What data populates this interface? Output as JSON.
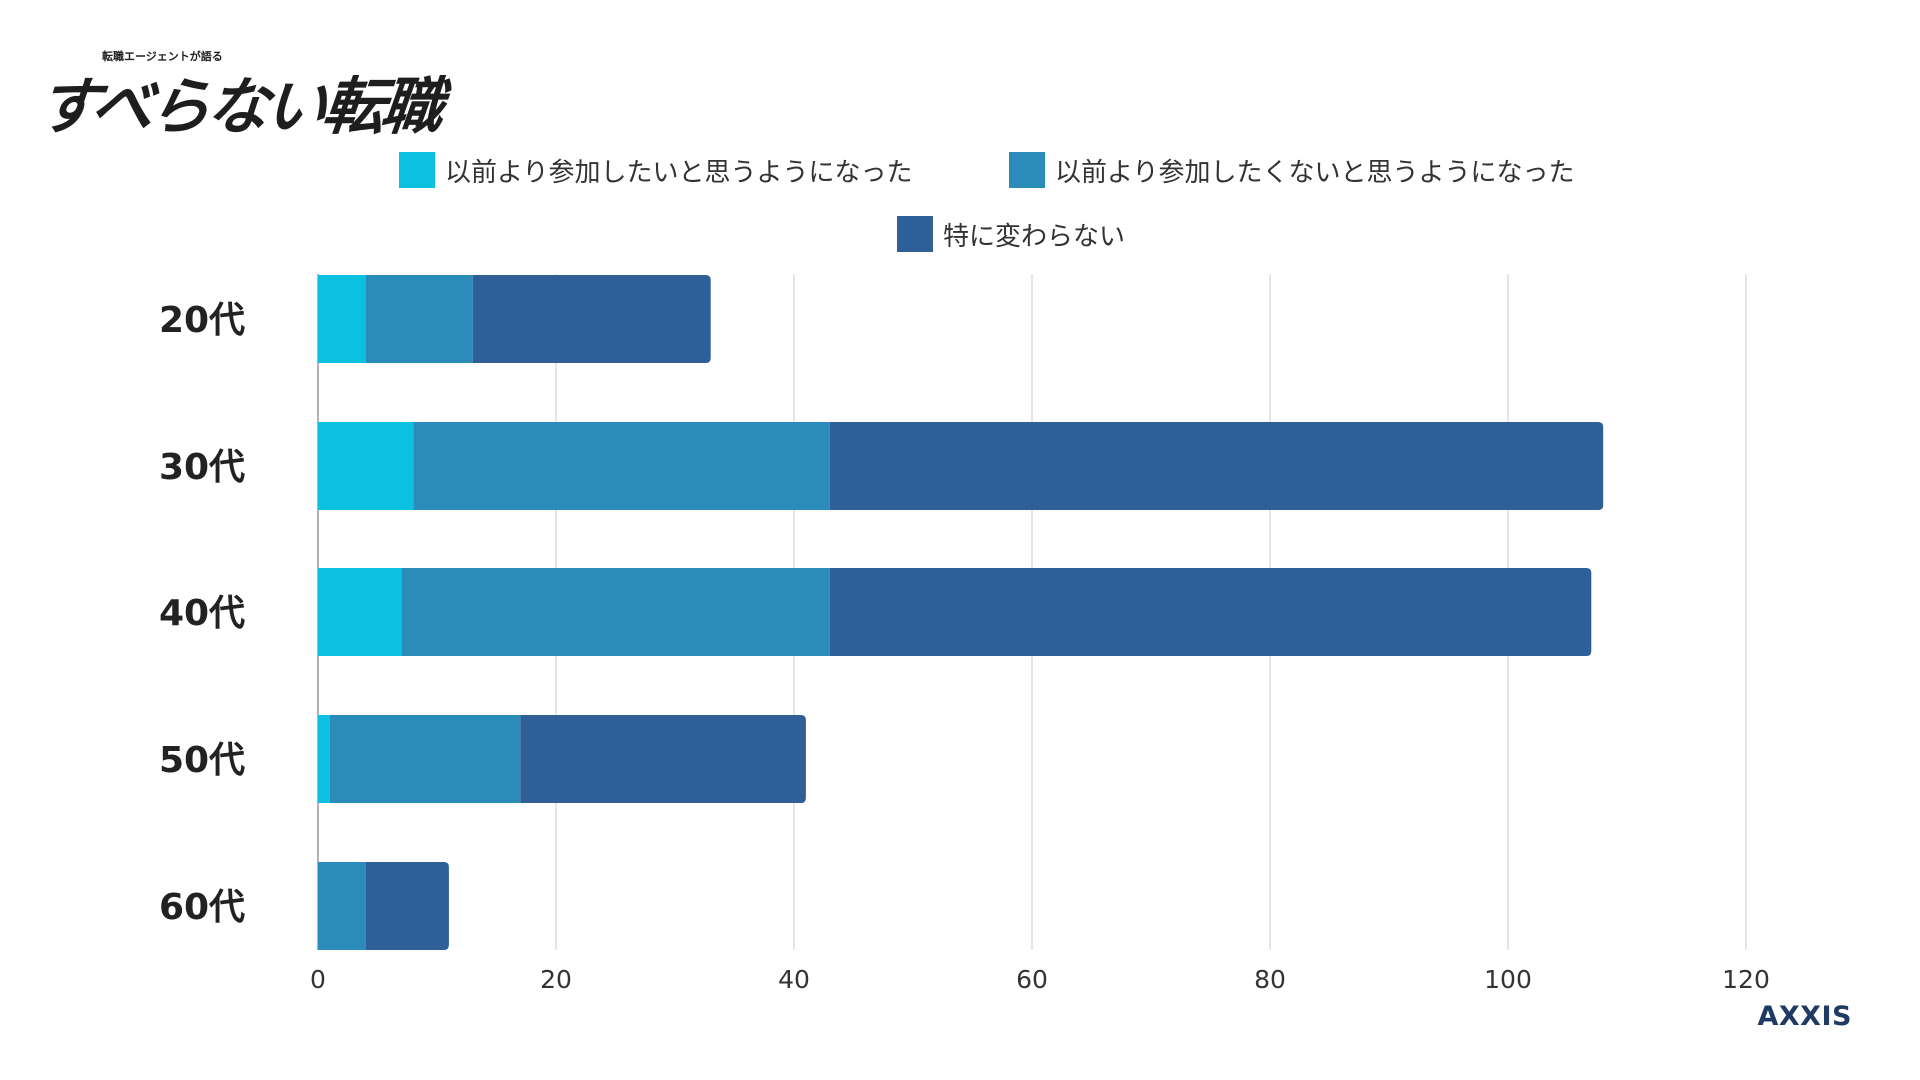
{
  "logo": {
    "subtitle": "転職エージェントが語る",
    "title": "すべらない転職"
  },
  "brand": "AXXIS",
  "chart_data": {
    "type": "bar",
    "orientation": "horizontal",
    "stacked": true,
    "categories": [
      "20代",
      "30代",
      "40代",
      "50代",
      "60代"
    ],
    "series": [
      {
        "name": "以前より参加したいと思うようになった",
        "color": "#0bc0e0",
        "values": [
          4,
          8,
          7,
          1,
          0
        ]
      },
      {
        "name": "以前より参加したくないと思うようになった",
        "color": "#2b8cba",
        "values": [
          9,
          35,
          36,
          16,
          4
        ]
      },
      {
        "name": "特に変わらない",
        "color": "#2e5f98",
        "values": [
          20,
          65,
          64,
          24,
          7
        ]
      }
    ],
    "xlim": [
      0,
      120
    ],
    "xticks": [
      "0",
      "20",
      "40",
      "60",
      "80",
      "100",
      "120"
    ],
    "grid": true,
    "legend_position": "top"
  }
}
